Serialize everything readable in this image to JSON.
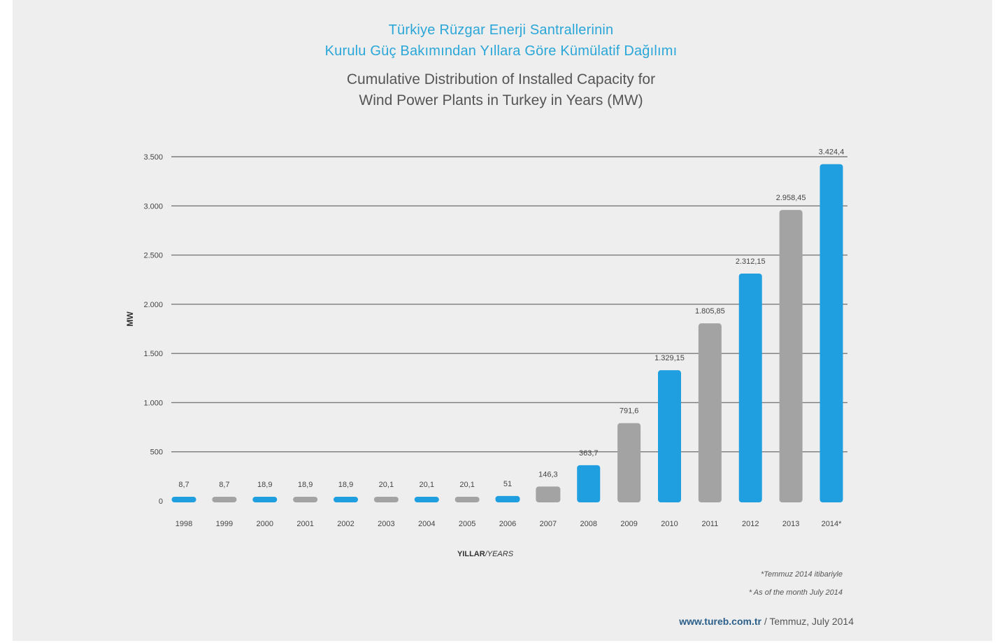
{
  "title_tr": [
    "Türkiye Rüzgar Enerji Santrallerinin",
    "Kurulu Güç Bakımından Yıllara Göre Kümülatif Dağılımı"
  ],
  "title_en": [
    "Cumulative Distribution of Installed Capacity for",
    "Wind Power Plants in Turkey in Years (MW)"
  ],
  "colors": {
    "blue": "#1f9ee0",
    "gray": "#a3a3a3",
    "title_blue": "#2aa6d8",
    "grid": "#7a7a7a"
  },
  "chart_data": {
    "type": "bar",
    "ylabel": "MW",
    "xlabel": {
      "main": "YILLAR",
      "sub": "/YEARS"
    },
    "ylim": [
      0,
      3500
    ],
    "yticks": [
      0,
      500,
      1000,
      1500,
      2000,
      2500,
      3000,
      3500
    ],
    "ytick_labels": [
      "0",
      "500",
      "1.000",
      "1.500",
      "2.000",
      "2.500",
      "3.000",
      "3.500"
    ],
    "grid": true,
    "categories": [
      "1998",
      "1999",
      "2000",
      "2001",
      "2002",
      "2003",
      "2004",
      "2005",
      "2006",
      "2007",
      "2008",
      "2009",
      "2010",
      "2011",
      "2012",
      "2013",
      "2014*"
    ],
    "values": [
      8.7,
      8.7,
      18.9,
      18.9,
      18.9,
      20.1,
      20.1,
      20.1,
      51,
      146.3,
      363.7,
      791.6,
      1329.15,
      1805.85,
      2312.15,
      2958.45,
      3424.4
    ],
    "value_labels": [
      "8,7",
      "8,7",
      "18,9",
      "18,9",
      "18,9",
      "20,1",
      "20,1",
      "20,1",
      "51",
      "146,3",
      "363,7",
      "791,6",
      "1.329,15",
      "1.805,85",
      "2.312,15",
      "2.958,45",
      "3.424,4"
    ],
    "bar_colors": [
      "blue",
      "gray",
      "blue",
      "gray",
      "blue",
      "gray",
      "blue",
      "gray",
      "blue",
      "gray",
      "blue",
      "gray",
      "blue",
      "gray",
      "blue",
      "gray",
      "blue"
    ]
  },
  "notes": [
    "*Temmuz 2014 itibariyle",
    "* As of the month July 2014"
  ],
  "source": {
    "site": "www.tureb.com.tr",
    "rest": " / Temmuz, July 2014"
  }
}
